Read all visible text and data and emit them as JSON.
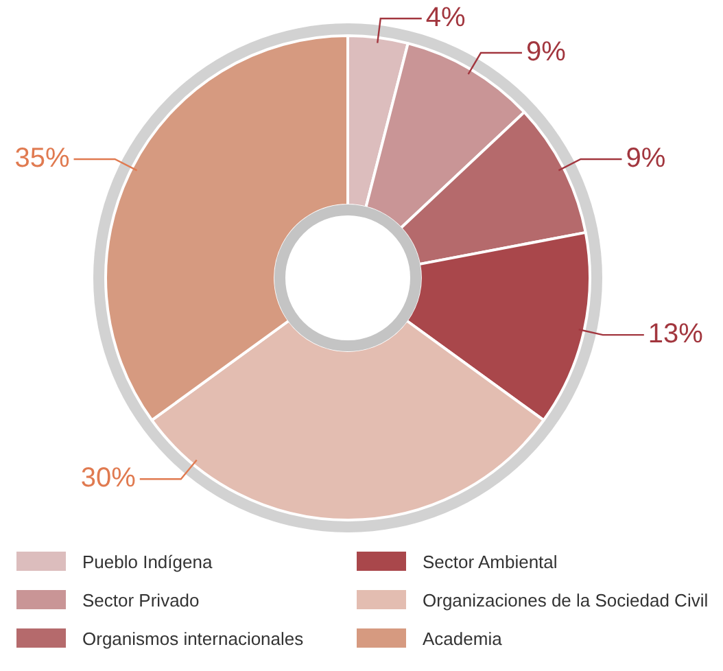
{
  "chart_data": {
    "type": "donut",
    "categories": [
      "Pueblo Indígena",
      "Sector Privado",
      "Organismos internacionales",
      "Sector Ambiental",
      "Organizaciones de la Sociedad Civil",
      "Academia"
    ],
    "values": [
      4,
      9,
      9,
      13,
      30,
      35
    ],
    "colors": [
      "#dcbdbd",
      "#c99596",
      "#b56a6c",
      "#a9474b",
      "#e3bdb1",
      "#d69a80"
    ],
    "value_labels": [
      "4%",
      "9%",
      "9%",
      "13%",
      "30%",
      "35%"
    ],
    "legend": "bottom"
  }
}
